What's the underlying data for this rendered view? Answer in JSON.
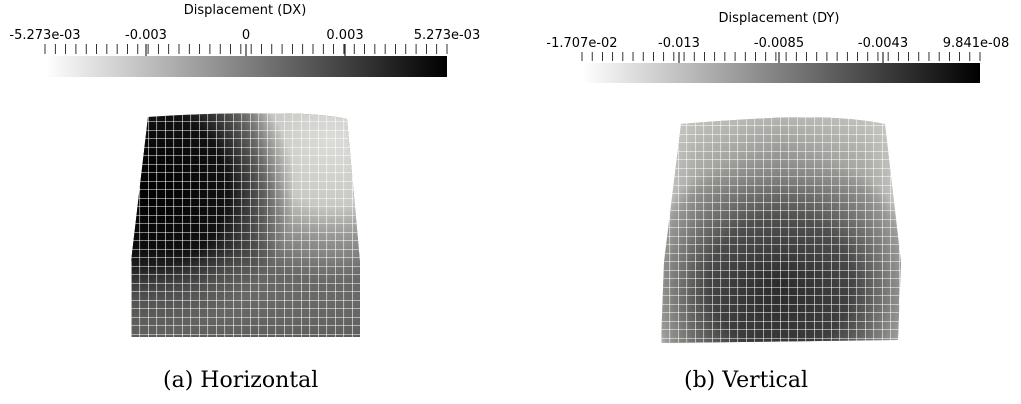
{
  "panels": [
    {
      "id": "left",
      "colorbar": {
        "title": "Displacement (DX)",
        "tick_labels": [
          "-5.273e-03",
          "-0.003",
          "0",
          "0.003",
          "5.273e-03"
        ],
        "tick_values": [
          -0.005273,
          -0.003,
          0,
          0.003,
          0.005273
        ],
        "range": [
          -0.005273,
          0.005273
        ],
        "colormap": [
          "#ffffff",
          "#000000"
        ]
      },
      "caption": "(a)  Horizontal"
    },
    {
      "id": "right",
      "colorbar": {
        "title": "Displacement (DY)",
        "tick_labels": [
          "-1.707e-02",
          "-0.013",
          "-0.0085",
          "-0.0043",
          "9.841e-08"
        ],
        "tick_values": [
          -0.01707,
          -0.013,
          -0.0085,
          -0.0043,
          9.841e-08
        ],
        "range": [
          -0.01707,
          9.841e-08
        ],
        "colormap": [
          "#ffffff",
          "#000000"
        ]
      },
      "caption": "(b)  Vertical"
    }
  ]
}
